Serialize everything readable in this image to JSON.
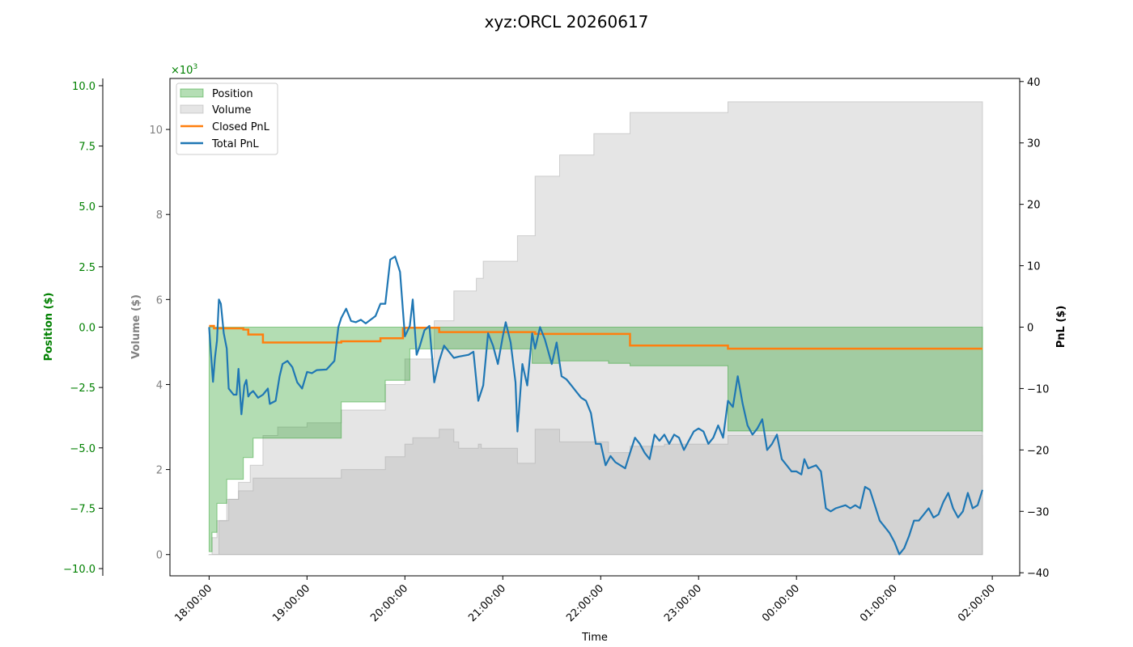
{
  "chart_data": {
    "type": "area",
    "title": "xyz:ORCL 20260617",
    "xlabel": "Time",
    "x_ticks": [
      "18:00:00",
      "19:00:00",
      "20:00:00",
      "21:00:00",
      "22:00:00",
      "23:00:00",
      "00:00:00",
      "01:00:00",
      "02:00:00"
    ],
    "x_hour_range": [
      17.6,
      26.28
    ],
    "axes": {
      "position": {
        "label": "Position ($)",
        "color": "#008000",
        "ylim": [
          -10.3,
          10.3
        ],
        "ticks": [
          "−10.0",
          "−7.5",
          "−5.0",
          "−2.5",
          "0.0",
          "2.5",
          "5.0",
          "7.5",
          "10.0"
        ],
        "tick_values": [
          -10,
          -7.5,
          -5,
          -2.5,
          0,
          2.5,
          5,
          7.5,
          10
        ]
      },
      "volume": {
        "label": "Volume ($)",
        "color": "#808080",
        "ylim": [
          -0.5,
          11.2
        ],
        "ticks": [
          "0",
          "2",
          "4",
          "6",
          "8",
          "10"
        ],
        "tick_values": [
          0,
          2,
          4,
          6,
          8,
          10
        ],
        "offset_text": "×10",
        "offset_exp": "3"
      },
      "pnl": {
        "label": "PnL ($)",
        "color": "#000000",
        "ylim": [
          -40.5,
          40.5
        ],
        "ticks": [
          "−40",
          "−30",
          "−20",
          "−10",
          "0",
          "10",
          "20",
          "30",
          "40"
        ],
        "tick_values": [
          -40,
          -30,
          -20,
          -10,
          0,
          10,
          20,
          30,
          40
        ]
      }
    },
    "legend": {
      "placement": "upper-left",
      "entries": [
        {
          "label": "Position",
          "kind": "patch",
          "color": "#2ca02c"
        },
        {
          "label": "Volume",
          "kind": "patch",
          "color": "#aaaaaa"
        },
        {
          "label": "Closed PnL",
          "kind": "line",
          "color": "#ff7f0e"
        },
        {
          "label": "Total PnL",
          "kind": "line",
          "color": "#1f77b4"
        }
      ]
    },
    "series": [
      {
        "name": "Volume",
        "axis": "volume",
        "kind": "step-area",
        "color": "#aaaaaa",
        "points": [
          [
            18.0,
            0
          ],
          [
            18.03,
            0.4
          ],
          [
            18.08,
            0.8
          ],
          [
            18.18,
            1.3
          ],
          [
            18.3,
            1.5
          ],
          [
            18.45,
            1.8
          ],
          [
            19.0,
            1.8
          ],
          [
            19.35,
            2.0
          ],
          [
            19.8,
            2.3
          ],
          [
            20.0,
            2.6
          ],
          [
            20.08,
            2.75
          ],
          [
            20.35,
            2.95
          ],
          [
            20.5,
            2.65
          ],
          [
            20.55,
            2.5
          ],
          [
            20.75,
            2.6
          ],
          [
            20.78,
            2.5
          ],
          [
            21.15,
            2.15
          ],
          [
            21.33,
            2.95
          ],
          [
            21.58,
            2.65
          ],
          [
            22.08,
            2.4
          ],
          [
            22.3,
            2.55
          ],
          [
            22.65,
            2.6
          ],
          [
            23.3,
            2.8
          ],
          [
            24.0,
            2.8
          ],
          [
            25.9,
            2.8
          ]
        ]
      },
      {
        "name": "Volume",
        "axis": "volume",
        "kind": "step-area-upper",
        "color": "#aaaaaa",
        "points": [
          [
            18.0,
            0
          ],
          [
            18.1,
            0.8
          ],
          [
            18.2,
            1.3
          ],
          [
            18.3,
            1.7
          ],
          [
            18.42,
            2.1
          ],
          [
            18.55,
            2.8
          ],
          [
            18.7,
            3.0
          ],
          [
            19.0,
            3.1
          ],
          [
            19.35,
            3.4
          ],
          [
            19.8,
            4.0
          ],
          [
            20.0,
            4.6
          ],
          [
            20.3,
            5.5
          ],
          [
            20.5,
            6.2
          ],
          [
            20.73,
            6.5
          ],
          [
            20.8,
            6.9
          ],
          [
            21.15,
            7.5
          ],
          [
            21.33,
            8.9
          ],
          [
            21.58,
            9.4
          ],
          [
            21.93,
            9.9
          ],
          [
            22.3,
            10.4
          ],
          [
            23.3,
            10.65
          ],
          [
            25.9,
            10.65
          ]
        ]
      },
      {
        "name": "Position",
        "axis": "position",
        "kind": "step-area",
        "color": "#2ca02c",
        "points": [
          [
            18.0,
            -9.3
          ],
          [
            18.03,
            -8.5
          ],
          [
            18.08,
            -7.3
          ],
          [
            18.18,
            -6.3
          ],
          [
            18.35,
            -5.4
          ],
          [
            18.45,
            -4.6
          ],
          [
            18.55,
            -4.6
          ],
          [
            19.0,
            -4.6
          ],
          [
            19.35,
            -3.1
          ],
          [
            19.8,
            -2.2
          ],
          [
            20.05,
            -0.9
          ],
          [
            20.25,
            -0.9
          ],
          [
            20.5,
            -0.9
          ],
          [
            21.0,
            -0.9
          ],
          [
            21.3,
            -1.5
          ],
          [
            21.58,
            -1.4
          ],
          [
            22.08,
            -1.5
          ],
          [
            22.3,
            -1.6
          ],
          [
            22.65,
            -1.6
          ],
          [
            23.3,
            -4.3
          ],
          [
            24.0,
            -4.3
          ],
          [
            25.9,
            -4.35
          ]
        ]
      },
      {
        "name": "Closed PnL",
        "axis": "pnl",
        "kind": "step-line",
        "color": "#ff7f0e",
        "points": [
          [
            18.0,
            0.2
          ],
          [
            18.05,
            -0.2
          ],
          [
            18.35,
            -0.4
          ],
          [
            18.4,
            -1.2
          ],
          [
            18.55,
            -2.5
          ],
          [
            19.05,
            -2.5
          ],
          [
            19.35,
            -2.3
          ],
          [
            19.75,
            -1.8
          ],
          [
            19.98,
            -0.2
          ],
          [
            20.0,
            -0.1
          ],
          [
            20.35,
            -0.8
          ],
          [
            21.33,
            -1.1
          ],
          [
            22.3,
            -3.0
          ],
          [
            23.3,
            -3.5
          ],
          [
            25.9,
            -3.5
          ]
        ]
      },
      {
        "name": "Total PnL",
        "axis": "pnl",
        "kind": "line",
        "color": "#1f77b4",
        "points": [
          [
            18.0,
            0
          ],
          [
            18.02,
            -4.5
          ],
          [
            18.04,
            -8.9
          ],
          [
            18.06,
            -5.0
          ],
          [
            18.08,
            -2.2
          ],
          [
            18.1,
            4.5
          ],
          [
            18.12,
            3.8
          ],
          [
            18.15,
            -1.0
          ],
          [
            18.18,
            -3.5
          ],
          [
            18.2,
            -10.0
          ],
          [
            18.25,
            -11.0
          ],
          [
            18.28,
            -11.0
          ],
          [
            18.3,
            -6.8
          ],
          [
            18.33,
            -14.2
          ],
          [
            18.36,
            -9.5
          ],
          [
            18.38,
            -8.6
          ],
          [
            18.4,
            -11.3
          ],
          [
            18.42,
            -10.8
          ],
          [
            18.45,
            -10.4
          ],
          [
            18.5,
            -11.5
          ],
          [
            18.55,
            -11.0
          ],
          [
            18.6,
            -10.0
          ],
          [
            18.62,
            -12.5
          ],
          [
            18.68,
            -12.0
          ],
          [
            18.72,
            -8.0
          ],
          [
            18.75,
            -6.0
          ],
          [
            18.8,
            -5.5
          ],
          [
            18.85,
            -6.5
          ],
          [
            18.9,
            -9.0
          ],
          [
            18.95,
            -10.0
          ],
          [
            19.0,
            -7.3
          ],
          [
            19.05,
            -7.5
          ],
          [
            19.1,
            -7.0
          ],
          [
            19.2,
            -6.9
          ],
          [
            19.28,
            -5.5
          ],
          [
            19.32,
            0.0
          ],
          [
            19.35,
            1.5
          ],
          [
            19.4,
            3.0
          ],
          [
            19.45,
            1.0
          ],
          [
            19.5,
            0.8
          ],
          [
            19.55,
            1.2
          ],
          [
            19.6,
            0.6
          ],
          [
            19.7,
            1.8
          ],
          [
            19.75,
            3.8
          ],
          [
            19.8,
            3.8
          ],
          [
            19.85,
            11.0
          ],
          [
            19.9,
            11.5
          ],
          [
            19.95,
            9.0
          ],
          [
            20.0,
            -1.5
          ],
          [
            20.05,
            0.2
          ],
          [
            20.08,
            4.5
          ],
          [
            20.12,
            -4.5
          ],
          [
            20.15,
            -3.2
          ],
          [
            20.2,
            -0.5
          ],
          [
            20.25,
            0.2
          ],
          [
            20.3,
            -9.0
          ],
          [
            20.35,
            -5.5
          ],
          [
            20.4,
            -3.0
          ],
          [
            20.45,
            -4.0
          ],
          [
            20.5,
            -5.0
          ],
          [
            20.55,
            -4.8
          ],
          [
            20.65,
            -4.5
          ],
          [
            20.7,
            -4.0
          ],
          [
            20.75,
            -12.0
          ],
          [
            20.8,
            -9.5
          ],
          [
            20.85,
            -1.0
          ],
          [
            20.9,
            -3.0
          ],
          [
            20.95,
            -6.0
          ],
          [
            21.0,
            -1.5
          ],
          [
            21.03,
            0.8
          ],
          [
            21.08,
            -2.5
          ],
          [
            21.13,
            -9.0
          ],
          [
            21.15,
            -17.0
          ],
          [
            21.2,
            -6.0
          ],
          [
            21.25,
            -9.5
          ],
          [
            21.3,
            -1.0
          ],
          [
            21.33,
            -3.5
          ],
          [
            21.38,
            0.0
          ],
          [
            21.43,
            -2.0
          ],
          [
            21.5,
            -6.0
          ],
          [
            21.55,
            -2.5
          ],
          [
            21.6,
            -8.0
          ],
          [
            21.65,
            -8.5
          ],
          [
            21.7,
            -9.5
          ],
          [
            21.75,
            -10.5
          ],
          [
            21.8,
            -11.5
          ],
          [
            21.85,
            -12.0
          ],
          [
            21.9,
            -14.0
          ],
          [
            21.95,
            -19.0
          ],
          [
            22.0,
            -19.0
          ],
          [
            22.05,
            -22.5
          ],
          [
            22.1,
            -21.0
          ],
          [
            22.15,
            -22.0
          ],
          [
            22.2,
            -22.5
          ],
          [
            22.25,
            -23.0
          ],
          [
            22.3,
            -20.5
          ],
          [
            22.35,
            -18.0
          ],
          [
            22.4,
            -19.0
          ],
          [
            22.45,
            -20.5
          ],
          [
            22.5,
            -21.5
          ],
          [
            22.55,
            -17.5
          ],
          [
            22.6,
            -18.5
          ],
          [
            22.65,
            -17.5
          ],
          [
            22.7,
            -19.0
          ],
          [
            22.75,
            -17.5
          ],
          [
            22.8,
            -18.0
          ],
          [
            22.85,
            -20.0
          ],
          [
            22.9,
            -18.5
          ],
          [
            22.95,
            -17.0
          ],
          [
            23.0,
            -16.5
          ],
          [
            23.05,
            -17.0
          ],
          [
            23.1,
            -19.0
          ],
          [
            23.15,
            -18.0
          ],
          [
            23.2,
            -16.0
          ],
          [
            23.25,
            -18.0
          ],
          [
            23.3,
            -12.0
          ],
          [
            23.35,
            -13.0
          ],
          [
            23.4,
            -8.0
          ],
          [
            23.45,
            -12.5
          ],
          [
            23.5,
            -16.0
          ],
          [
            23.55,
            -17.5
          ],
          [
            23.6,
            -16.5
          ],
          [
            23.65,
            -15.0
          ],
          [
            23.7,
            -20.0
          ],
          [
            23.75,
            -19.0
          ],
          [
            23.8,
            -17.5
          ],
          [
            23.85,
            -21.5
          ],
          [
            23.9,
            -22.5
          ],
          [
            23.95,
            -23.5
          ],
          [
            24.0,
            -23.5
          ],
          [
            24.05,
            -24.0
          ],
          [
            24.08,
            -21.5
          ],
          [
            24.12,
            -23.0
          ],
          [
            24.2,
            -22.5
          ],
          [
            24.25,
            -23.5
          ],
          [
            24.3,
            -29.5
          ],
          [
            24.35,
            -30.0
          ],
          [
            24.4,
            -29.5
          ],
          [
            24.5,
            -29.0
          ],
          [
            24.55,
            -29.5
          ],
          [
            24.6,
            -29.0
          ],
          [
            24.65,
            -29.5
          ],
          [
            24.7,
            -26.0
          ],
          [
            24.75,
            -26.5
          ],
          [
            24.8,
            -29.0
          ],
          [
            24.85,
            -31.5
          ],
          [
            24.9,
            -32.5
          ],
          [
            24.95,
            -33.5
          ],
          [
            25.0,
            -35.0
          ],
          [
            25.05,
            -37.0
          ],
          [
            25.1,
            -36.0
          ],
          [
            25.15,
            -34.0
          ],
          [
            25.2,
            -31.5
          ],
          [
            25.25,
            -31.5
          ],
          [
            25.3,
            -30.5
          ],
          [
            25.35,
            -29.5
          ],
          [
            25.4,
            -31.0
          ],
          [
            25.45,
            -30.5
          ],
          [
            25.5,
            -28.5
          ],
          [
            25.55,
            -27.0
          ],
          [
            25.6,
            -29.5
          ],
          [
            25.65,
            -31.0
          ],
          [
            25.7,
            -30.0
          ],
          [
            25.75,
            -27.0
          ],
          [
            25.8,
            -29.5
          ],
          [
            25.85,
            -29.0
          ],
          [
            25.9,
            -26.5
          ]
        ]
      }
    ]
  }
}
